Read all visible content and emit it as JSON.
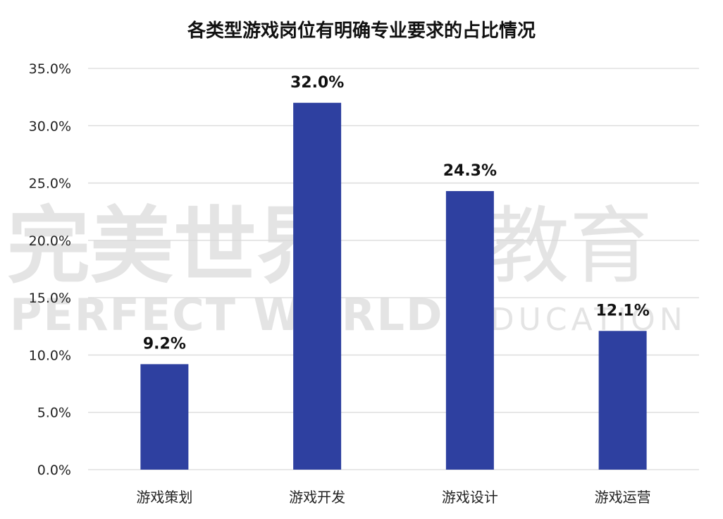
{
  "watermark": {
    "cn_left": "完美世界",
    "cn_right": "教育",
    "en_left": "PERFECT WORLD",
    "en_right": "EDUCATION"
  },
  "chart_data": {
    "type": "bar",
    "title": "各类型游戏岗位有明确专业要求的占比情况",
    "categories": [
      "游戏策划",
      "游戏开发",
      "游戏设计",
      "游戏运营"
    ],
    "values": [
      9.2,
      32.0,
      24.3,
      12.1
    ],
    "value_labels": [
      "9.2%",
      "32.0%",
      "24.3%",
      "12.1%"
    ],
    "ylim": [
      0,
      35
    ],
    "yticks": [
      0,
      5,
      10,
      15,
      20,
      25,
      30,
      35
    ],
    "ytick_labels": [
      "0.0%",
      "5.0%",
      "10.0%",
      "15.0%",
      "20.0%",
      "25.0%",
      "30.0%",
      "35.0%"
    ],
    "xlabel": "",
    "ylabel": "",
    "grid": true,
    "bar_color": "#2e40a0",
    "grid_color": "#d9d9d9"
  }
}
